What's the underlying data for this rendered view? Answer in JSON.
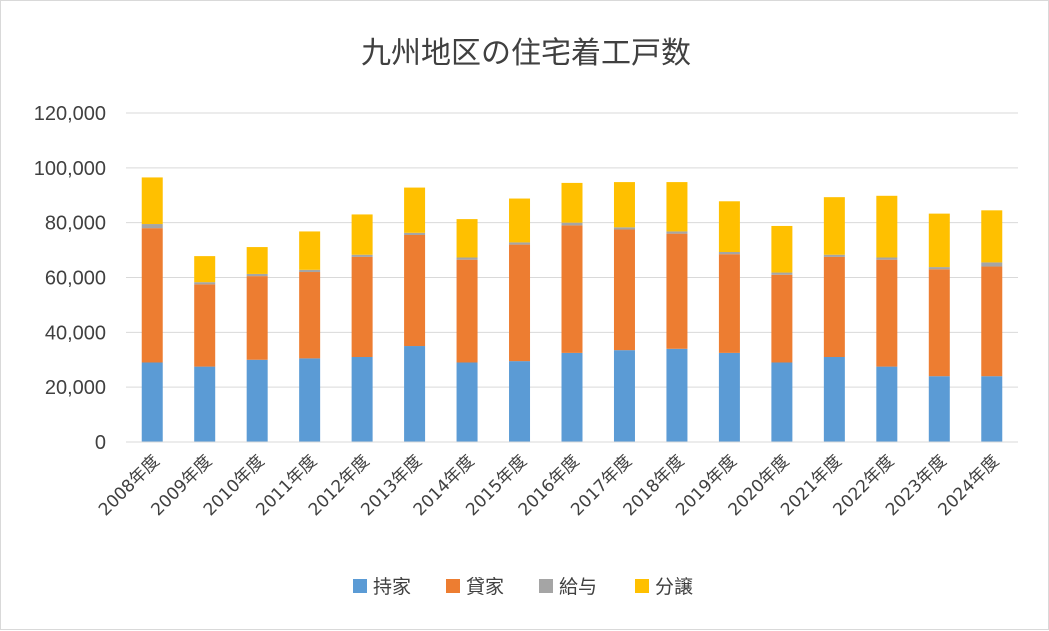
{
  "chart_data": {
    "type": "bar",
    "stacked": true,
    "title": "九州地区の住宅着工戸数",
    "xlabel": "",
    "ylabel": "",
    "ylim": [
      0,
      120000
    ],
    "yticks": [
      "0",
      "20,000",
      "40,000",
      "60,000",
      "80,000",
      "100,000",
      "120,000"
    ],
    "grid": true,
    "legend_position": "bottom",
    "categories": [
      "2008年度",
      "2009年度",
      "2010年度",
      "2011年度",
      "2012年度",
      "2013年度",
      "2014年度",
      "2015年度",
      "2016年度",
      "2017年度",
      "2018年度",
      "2019年度",
      "2020年度",
      "2021年度",
      "2022年度",
      "2023年度",
      "2024年度"
    ],
    "series": [
      {
        "name": "持家",
        "color": "#5b9bd5",
        "values": [
          29000,
          27500,
          30000,
          30500,
          31000,
          35000,
          29000,
          29500,
          32500,
          33500,
          34000,
          32500,
          29000,
          31000,
          27500,
          24000,
          24000
        ]
      },
      {
        "name": "貸家",
        "color": "#ed7d31",
        "values": [
          49000,
          30000,
          30500,
          31500,
          36500,
          40500,
          37500,
          42500,
          46500,
          44000,
          42000,
          36000,
          32000,
          36500,
          39000,
          39000,
          40000
        ]
      },
      {
        "name": "給与",
        "color": "#a5a5a5",
        "values": [
          1500,
          800,
          800,
          800,
          800,
          800,
          800,
          800,
          1000,
          800,
          800,
          800,
          800,
          800,
          800,
          800,
          1500
        ]
      },
      {
        "name": "分譲",
        "color": "#ffc000",
        "values": [
          17000,
          9500,
          9800,
          14000,
          14700,
          16500,
          14000,
          16000,
          14500,
          16500,
          18000,
          18500,
          17000,
          21000,
          22500,
          19500,
          19000
        ]
      }
    ]
  }
}
